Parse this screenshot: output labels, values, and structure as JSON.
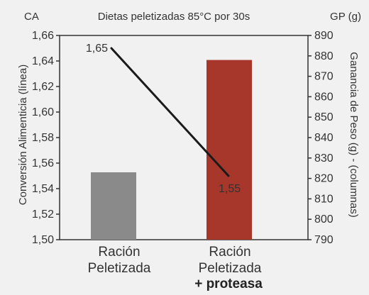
{
  "chart_data": {
    "type": "bar",
    "title": "Dietas peletizadas 85°C por 30s",
    "left_axis": {
      "short_label": "CA",
      "label": "Conversión Alimenticia (línea)",
      "ylim": [
        1.5,
        1.66
      ],
      "ticks": [
        "1,50",
        "1,52",
        "1,54",
        "1,56",
        "1,58",
        "1,60",
        "1,62",
        "1,64",
        "1,66"
      ],
      "tick_values": [
        1.5,
        1.52,
        1.54,
        1.56,
        1.58,
        1.6,
        1.62,
        1.64,
        1.66
      ]
    },
    "right_axis": {
      "short_label": "GP (g)",
      "label": "Ganancia de Peso (g) - (columnas)",
      "ylim": [
        790,
        890
      ],
      "ticks": [
        "790",
        "800",
        "810",
        "820",
        "830",
        "840",
        "850",
        "860",
        "870",
        "880",
        "890"
      ],
      "tick_values": [
        790,
        800,
        810,
        820,
        830,
        840,
        850,
        860,
        870,
        880,
        890
      ]
    },
    "categories": [
      {
        "line1": "Ración",
        "line2": "Peletizada",
        "line3": ""
      },
      {
        "line1": "Ración",
        "line2": "Peletizada",
        "line3": "+ proteasa"
      }
    ],
    "bar_series": {
      "axis": "right",
      "values": [
        823,
        878
      ],
      "colors": [
        "#8a8a8a",
        "#a7372a"
      ]
    },
    "line_series": {
      "axis": "left",
      "values": [
        1.65,
        1.55
      ],
      "value_labels": [
        "1,65",
        "1,55"
      ],
      "color": "#1a1a1a"
    }
  }
}
